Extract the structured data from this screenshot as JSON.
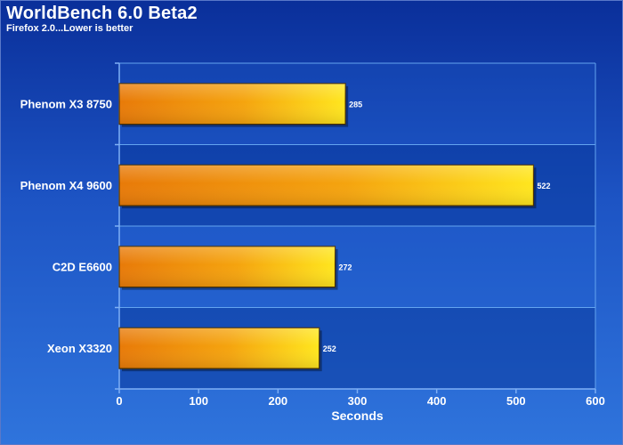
{
  "chart_data": {
    "type": "bar",
    "orientation": "horizontal",
    "title": "WorldBench 6.0 Beta2",
    "subtitle": "Firefox 2.0...Lower is better",
    "categories": [
      "Phenom X3 8750",
      "Phenom X4 9600",
      "C2D E6600",
      "Xeon X3320"
    ],
    "values": [
      285,
      522,
      272,
      252
    ],
    "xlabel": "Seconds",
    "ylabel": "",
    "xlim": [
      0,
      600
    ],
    "xticks": [
      "0",
      "100",
      "200",
      "300",
      "400",
      "500",
      "600"
    ],
    "grid": true,
    "colors": {
      "bar_start": "#e87a08",
      "bar_mid": "#f5a40e",
      "bar_end": "#ffe61e",
      "bar_stroke": "#4a3000",
      "grid": "#63a4f0",
      "background_top": "#0a2f9a",
      "background_bottom": "#2f74dc",
      "text": "#ffffff"
    }
  }
}
